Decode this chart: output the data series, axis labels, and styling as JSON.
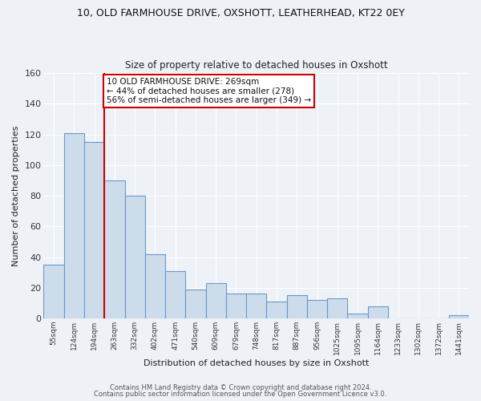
{
  "title": "10, OLD FARMHOUSE DRIVE, OXSHOTT, LEATHERHEAD, KT22 0EY",
  "subtitle": "Size of property relative to detached houses in Oxshott",
  "xlabel": "Distribution of detached houses by size in Oxshott",
  "ylabel": "Number of detached properties",
  "bar_labels": [
    "55sqm",
    "124sqm",
    "194sqm",
    "263sqm",
    "332sqm",
    "402sqm",
    "471sqm",
    "540sqm",
    "609sqm",
    "679sqm",
    "748sqm",
    "817sqm",
    "887sqm",
    "956sqm",
    "1025sqm",
    "1095sqm",
    "1164sqm",
    "1233sqm",
    "1302sqm",
    "1372sqm",
    "1441sqm"
  ],
  "bar_heights": [
    35,
    121,
    115,
    90,
    80,
    42,
    31,
    19,
    23,
    16,
    16,
    11,
    15,
    12,
    13,
    3,
    8,
    0,
    0,
    0,
    2
  ],
  "bar_color": "#cddceb",
  "bar_edge_color": "#6699cc",
  "background_color": "#eef2f7",
  "plot_bg_color": "#eef2f7",
  "grid_color": "#ffffff",
  "ylim": [
    0,
    160
  ],
  "yticks": [
    0,
    20,
    40,
    60,
    80,
    100,
    120,
    140,
    160
  ],
  "vline_color": "#cc0000",
  "annotation_text": "10 OLD FARMHOUSE DRIVE: 269sqm\n← 44% of detached houses are smaller (278)\n56% of semi-detached houses are larger (349) →",
  "annotation_box_color": "#ffffff",
  "annotation_box_edge": "#cc0000",
  "footer1": "Contains HM Land Registry data © Crown copyright and database right 2024.",
  "footer2": "Contains public sector information licensed under the Open Government Licence v3.0."
}
